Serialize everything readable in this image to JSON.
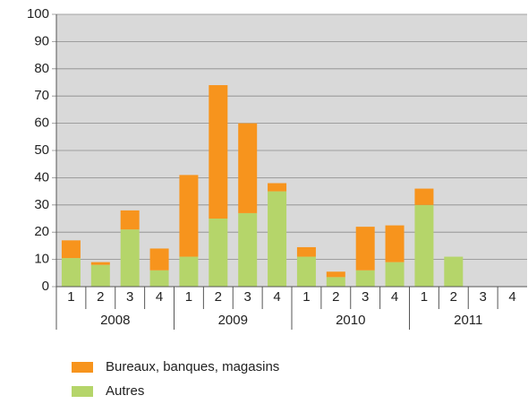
{
  "chart_data": {
    "type": "stacked_bar",
    "categories": [
      "1",
      "2",
      "3",
      "4",
      "1",
      "2",
      "3",
      "4",
      "1",
      "2",
      "3",
      "4",
      "1",
      "2",
      "3",
      "4"
    ],
    "x_groups": [
      "2008",
      "2009",
      "2010",
      "2011"
    ],
    "series": [
      {
        "name": "Autres",
        "color": "#b5d56a",
        "values": [
          10.5,
          8,
          21,
          6,
          11,
          25,
          27,
          35,
          11,
          3.5,
          6,
          9,
          30,
          11,
          0,
          0
        ]
      },
      {
        "name": "Bureaux, banques, magasins",
        "color": "#f7941d",
        "values": [
          6.5,
          1,
          7,
          8,
          30,
          49,
          33,
          3,
          3.5,
          2,
          16,
          13.5,
          6,
          0,
          0,
          0
        ]
      }
    ],
    "ylim": [
      0,
      100
    ],
    "yticks": [
      0,
      10,
      20,
      30,
      40,
      50,
      60,
      70,
      80,
      90,
      100
    ],
    "grid": true,
    "legend": "bottom"
  }
}
